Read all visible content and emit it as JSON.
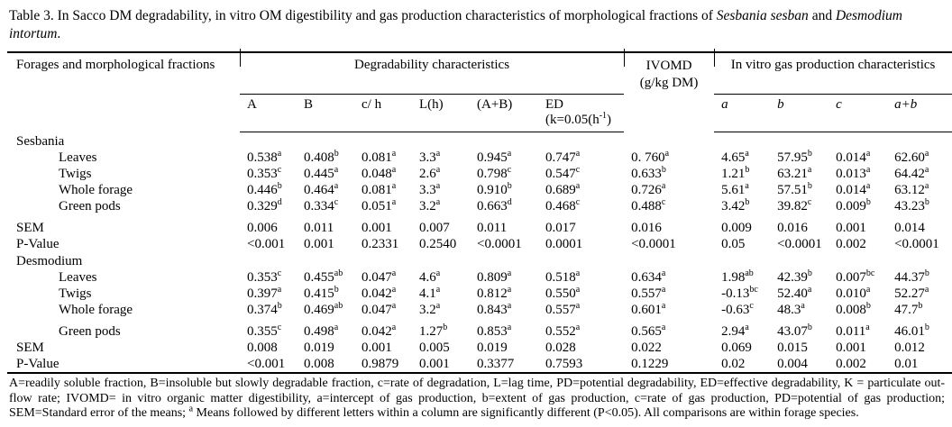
{
  "caption": {
    "part1": "Table 3. In Sacco DM degradability, in vitro OM digestibility and gas production characteristics of morphological fractions of ",
    "italic1": "Sesbania sesban",
    "part2": " and ",
    "italic2": "Desmodium intortum",
    "part3": "."
  },
  "table": {
    "header": {
      "forages": "Forages and morphological  fractions",
      "degradability": "Degradability characteristics",
      "ivomd_line1": "IVOMD",
      "ivomd_line2": "(g/kg DM)",
      "gas": "In vitro gas production characteristics"
    },
    "subheaders": {
      "a": "A",
      "b": "B",
      "ch": "c/ h",
      "lh": "L(h)",
      "aplusb": "(A+B)",
      "ed": "ED",
      "ed_sub_pre": "(k=0.05(h",
      "ed_sub_sup": "-1",
      "ed_sub_post": ")",
      "gas_a": "a",
      "gas_b": "b",
      "gas_c": "c",
      "gas_ab": "a+b"
    },
    "rows": [
      {
        "label": "Sesbania",
        "type": "species"
      },
      {
        "label": "Leaves",
        "type": "fraction",
        "cells": [
          {
            "v": "0.538",
            "s": "a"
          },
          {
            "v": "0.408",
            "s": "b"
          },
          {
            "v": "0.081",
            "s": "a"
          },
          {
            "v": "3.3",
            "s": "a"
          },
          {
            "v": "0.945",
            "s": "a"
          },
          {
            "v": "0.747",
            "s": "a"
          },
          {
            "v": "0. 760",
            "s": "a"
          },
          {
            "v": "4.65",
            "s": "a"
          },
          {
            "v": "57.95",
            "s": "b"
          },
          {
            "v": "0.014",
            "s": "a"
          },
          {
            "v": "62.60",
            "s": "a"
          }
        ]
      },
      {
        "label": "Twigs",
        "type": "fraction",
        "cells": [
          {
            "v": "0.353",
            "s": "c"
          },
          {
            "v": "0.445",
            "s": "a"
          },
          {
            "v": "0.048",
            "s": "a"
          },
          {
            "v": "2.6",
            "s": "a"
          },
          {
            "v": "0.798",
            "s": "c"
          },
          {
            "v": "0.547",
            "s": "c"
          },
          {
            "v": "0.633",
            "s": "b"
          },
          {
            "v": "1.21",
            "s": "b"
          },
          {
            "v": "63.21",
            "s": "a"
          },
          {
            "v": "0.013",
            "s": "a"
          },
          {
            "v": "64.42",
            "s": "a"
          }
        ]
      },
      {
        "label": "Whole forage",
        "type": "fraction",
        "cells": [
          {
            "v": "0.446",
            "s": "b"
          },
          {
            "v": "0.464",
            "s": "a"
          },
          {
            "v": "0.081",
            "s": "a"
          },
          {
            "v": "3.3",
            "s": "a"
          },
          {
            "v": "0.910",
            "s": "b"
          },
          {
            "v": "0.689",
            "s": "a"
          },
          {
            "v": "0.726",
            "s": "a"
          },
          {
            "v": "5.61",
            "s": "a"
          },
          {
            "v": "57.51",
            "s": "b"
          },
          {
            "v": "0.014",
            "s": "a"
          },
          {
            "v": "63.12",
            "s": "a"
          }
        ]
      },
      {
        "label": "Green pods",
        "type": "fraction",
        "cells": [
          {
            "v": "0.329",
            "s": "d"
          },
          {
            "v": "0.334",
            "s": "c"
          },
          {
            "v": "0.051",
            "s": "a"
          },
          {
            "v": "3.2",
            "s": "a"
          },
          {
            "v": "0.663",
            "s": "d"
          },
          {
            "v": "0.468",
            "s": "c"
          },
          {
            "v": "0.488",
            "s": "c"
          },
          {
            "v": "3.42",
            "s": "b"
          },
          {
            "v": "39.82",
            "s": "c"
          },
          {
            "v": "0.009",
            "s": "b"
          },
          {
            "v": "43.23",
            "s": "b"
          }
        ]
      },
      {
        "label": "SEM",
        "type": "stat",
        "gap": true,
        "cells": [
          {
            "v": "0.006"
          },
          {
            "v": "0.011"
          },
          {
            "v": "0.001"
          },
          {
            "v": "0.007"
          },
          {
            "v": "0.011"
          },
          {
            "v": "0.017"
          },
          {
            "v": "0.016"
          },
          {
            "v": "0.009"
          },
          {
            "v": "0.016"
          },
          {
            "v": "0.001"
          },
          {
            "v": "0.014"
          }
        ]
      },
      {
        "label": "P-Value",
        "type": "stat",
        "cells": [
          {
            "v": "<0.001"
          },
          {
            "v": "0.001"
          },
          {
            "v": "0.2331"
          },
          {
            "v": "0.2540"
          },
          {
            "v": "<0.0001"
          },
          {
            "v": "0.0001"
          },
          {
            "v": "<0.0001"
          },
          {
            "v": "0.05"
          },
          {
            "v": "<0.0001"
          },
          {
            "v": "0.002"
          },
          {
            "v": "<0.0001"
          }
        ]
      },
      {
        "label": "Desmodium",
        "type": "species"
      },
      {
        "label": "Leaves",
        "type": "fraction",
        "cells": [
          {
            "v": "0.353",
            "s": "c"
          },
          {
            "v": "0.455",
            "s": "ab"
          },
          {
            "v": "0.047",
            "s": "a"
          },
          {
            "v": "4.6",
            "s": "a"
          },
          {
            "v": "0.809",
            "s": "a"
          },
          {
            "v": "0.518",
            "s": "a"
          },
          {
            "v": "0.634",
            "s": "a"
          },
          {
            "v": "1.98",
            "s": "ab"
          },
          {
            "v": "42.39",
            "s": "b"
          },
          {
            "v": "0.007",
            "s": "bc"
          },
          {
            "v": "44.37",
            "s": "b"
          }
        ]
      },
      {
        "label": "Twigs",
        "type": "fraction",
        "cells": [
          {
            "v": "0.397",
            "s": "a"
          },
          {
            "v": "0.415",
            "s": "b"
          },
          {
            "v": "0.042",
            "s": "a"
          },
          {
            "v": "4.1",
            "s": "a"
          },
          {
            "v": "0.812",
            "s": "a"
          },
          {
            "v": "0.550",
            "s": "a"
          },
          {
            "v": "0.557",
            "s": "a"
          },
          {
            "v": "-0.13",
            "s": "bc"
          },
          {
            "v": "52.40",
            "s": "a"
          },
          {
            "v": "0.010",
            "s": "a"
          },
          {
            "v": "52.27",
            "s": "a"
          }
        ]
      },
      {
        "label": "Whole forage",
        "type": "fraction",
        "cells": [
          {
            "v": "0.374",
            "s": "b"
          },
          {
            "v": "0.469",
            "s": "ab"
          },
          {
            "v": "0.047",
            "s": "a"
          },
          {
            "v": "3.2",
            "s": "a"
          },
          {
            "v": "0.843",
            "s": "a"
          },
          {
            "v": "0.557",
            "s": "a"
          },
          {
            "v": "0.601",
            "s": "a"
          },
          {
            "v": "-0.63",
            "s": "c"
          },
          {
            "v": "48.3",
            "s": "a"
          },
          {
            "v": "0.008",
            "s": "b"
          },
          {
            "v": "47.7",
            "s": "b"
          }
        ]
      },
      {
        "label": "Green pods",
        "type": "fraction",
        "gap": true,
        "cells": [
          {
            "v": "0.355",
            "s": "c"
          },
          {
            "v": "0.498",
            "s": "a"
          },
          {
            "v": "0.042",
            "s": "a"
          },
          {
            "v": "1.27",
            "s": "b"
          },
          {
            "v": "0.853",
            "s": "a"
          },
          {
            "v": "0.552",
            "s": "a"
          },
          {
            "v": "0.565",
            "s": "a"
          },
          {
            "v": "2.94",
            "s": "a"
          },
          {
            "v": "43.07",
            "s": "b"
          },
          {
            "v": "0.011",
            "s": "a"
          },
          {
            "v": "46.01",
            "s": "b"
          }
        ]
      },
      {
        "label": "SEM",
        "type": "stat",
        "cells": [
          {
            "v": "0.008"
          },
          {
            "v": "0.019"
          },
          {
            "v": "0.001"
          },
          {
            "v": "0.005"
          },
          {
            "v": "0.019"
          },
          {
            "v": "0.028"
          },
          {
            "v": "0.022"
          },
          {
            "v": "0.069"
          },
          {
            "v": "0.015"
          },
          {
            "v": "0.001"
          },
          {
            "v": "0.012"
          }
        ]
      },
      {
        "label": "P-Value",
        "type": "stat",
        "cells": [
          {
            "v": "<0.001"
          },
          {
            "v": "0.008"
          },
          {
            "v": "0.9879"
          },
          {
            "v": "0.001"
          },
          {
            "v": "0.3377"
          },
          {
            "v": "0.7593"
          },
          {
            "v": "0.1229"
          },
          {
            "v": "0.02"
          },
          {
            "v": "0.004"
          },
          {
            "v": "0.002"
          },
          {
            "v": "0.01"
          }
        ]
      }
    ]
  },
  "footnote": {
    "part1": "A=readily soluble fraction, B=insoluble but slowly degradable fraction, c=rate of degradation, L=lag time, PD=potential degradability, ED=effective degradability,  K = particulate out-flow rate; IVOMD= in vitro organic matter digestibility,  a=intercept of gas production, b=extent of gas  production, c=rate of gas production, PD=potential of gas production; SEM=Standard error of the means;  ",
    "sup": "a",
    "part2": " Means followed by different letters within a column are significantly different (P<0.05). All comparisons are within forage species."
  }
}
